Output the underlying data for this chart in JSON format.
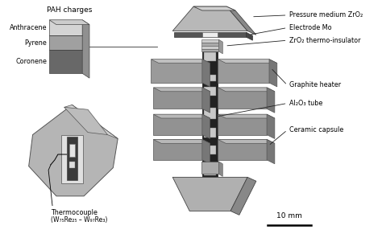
{
  "bg_color": "#ffffff",
  "pah_title": "PAH charges",
  "pah_labels": [
    "Anthracene",
    "Pyrene",
    "Coronene"
  ],
  "pah_colors": [
    "#d4d4d4",
    "#a0a0a0",
    "#686868"
  ],
  "right_labels": [
    "Pressure medium ZrO₂",
    "Electrode Mo",
    "ZrO₂ thermo-insulator",
    "Graphite heater",
    "Al₂O₃ tube",
    "Ceramic capsule"
  ],
  "bottom_labels": [
    "Thermocouple",
    "(W₇₅Re₂₅ – W₉₇Re₃)"
  ],
  "scale_label": "10 mm",
  "text_color": "#000000"
}
